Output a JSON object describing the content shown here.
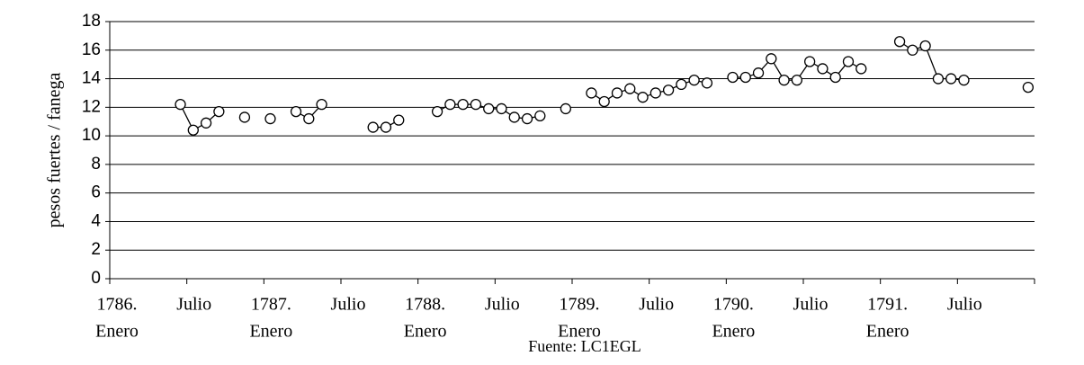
{
  "chart_data": {
    "type": "line",
    "y_label": "pesos fuertes / fanega",
    "source": "Fuente: LC1EGL",
    "xlim": [
      0,
      72
    ],
    "xticks": [
      {
        "value": 0,
        "label": [
          "1786.",
          "Enero"
        ]
      },
      {
        "value": 6,
        "label": [
          "Julio"
        ]
      },
      {
        "value": 12,
        "label": [
          "1787.",
          "Enero"
        ]
      },
      {
        "value": 18,
        "label": [
          "Julio"
        ]
      },
      {
        "value": 24,
        "label": [
          "1788.",
          "Enero"
        ]
      },
      {
        "value": 30,
        "label": [
          "Julio"
        ]
      },
      {
        "value": 36,
        "label": [
          "1789.",
          "Enero"
        ]
      },
      {
        "value": 42,
        "label": [
          "Julio"
        ]
      },
      {
        "value": 48,
        "label": [
          "1790.",
          "Enero"
        ]
      },
      {
        "value": 54,
        "label": [
          "Julio"
        ]
      },
      {
        "value": 60,
        "label": [
          "1791.",
          "Enero"
        ]
      },
      {
        "value": 66,
        "label": [
          "Julio"
        ]
      }
    ],
    "ylim": [
      0,
      18
    ],
    "yticks": [
      0,
      2,
      4,
      6,
      8,
      10,
      12,
      14,
      16,
      18
    ],
    "grid": true,
    "x": [
      5.5,
      6.5,
      7.5,
      8.5,
      9.5,
      10.5,
      11.5,
      12.5,
      13.5,
      14.5,
      15.5,
      16.5,
      17.5,
      18.5,
      19.5,
      20.5,
      21.5,
      22.5,
      23.5,
      24.5,
      25.5,
      26.5,
      27.5,
      28.5,
      29.5,
      30.5,
      31.5,
      32.5,
      33.5,
      34.5,
      35.5,
      36.5,
      37.5,
      38.5,
      39.5,
      40.5,
      41.5,
      42.5,
      43.5,
      44.5,
      45.5,
      46.5,
      47.5,
      48.5,
      49.5,
      50.5,
      51.5,
      52.5,
      53.5,
      54.5,
      55.5,
      56.5,
      57.5,
      58.5,
      59.5,
      60.5,
      61.5,
      62.5,
      63.5,
      64.5,
      65.5,
      66.5,
      67.5,
      68.5,
      69.5,
      70.5,
      71.5
    ],
    "series": [
      {
        "color": "#000000",
        "values": [
          12.2,
          10.4,
          10.9,
          11.7,
          null,
          11.3,
          null,
          11.2,
          null,
          11.7,
          11.2,
          12.2,
          null,
          null,
          null,
          10.6,
          10.6,
          11.1,
          null,
          null,
          11.7,
          12.2,
          12.2,
          12.2,
          11.9,
          11.9,
          11.3,
          11.2,
          11.4,
          null,
          11.9,
          null,
          13.0,
          12.4,
          13.0,
          13.3,
          12.7,
          13.0,
          13.2,
          13.6,
          13.9,
          13.7,
          null,
          14.1,
          14.1,
          14.4,
          15.4,
          13.9,
          13.9,
          15.2,
          14.7,
          14.1,
          15.2,
          14.7,
          null,
          null,
          16.6,
          16.0,
          16.3,
          14.0,
          14.0,
          13.9,
          null,
          null,
          null,
          null,
          13.4
        ]
      }
    ]
  }
}
